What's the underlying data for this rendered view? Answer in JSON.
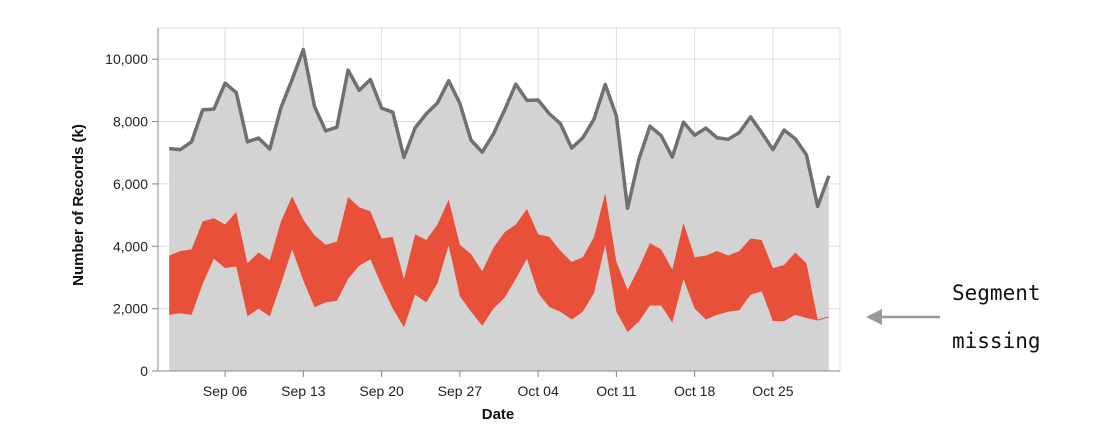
{
  "chart_data": {
    "type": "area",
    "xlabel": "Date",
    "ylabel": "Number of Records (k)",
    "x_axis": {
      "type": "date",
      "start": "2020-08-31",
      "end": "2020-10-31",
      "tick_labels": [
        "Sep 06",
        "Sep 13",
        "Sep 20",
        "Sep 27",
        "Oct 04",
        "Oct 11",
        "Oct 18",
        "Oct 25"
      ],
      "tick_dates": [
        "2020-09-06",
        "2020-09-13",
        "2020-09-20",
        "2020-09-27",
        "2020-10-04",
        "2020-10-11",
        "2020-10-18",
        "2020-10-25"
      ]
    },
    "y_axis": {
      "range": [
        0,
        11000
      ],
      "ticks": [
        0,
        2000,
        4000,
        6000,
        8000,
        10000
      ],
      "tick_labels": [
        "0",
        "2,000",
        "4,000",
        "6,000",
        "8,000",
        "10,000"
      ]
    },
    "grid": true,
    "colors": {
      "total_fill": "#d3d3d3",
      "total_line": "#707070",
      "band_fill": "#e8503a",
      "arrow": "#999999"
    },
    "x": [
      "2020-09-01",
      "2020-09-02",
      "2020-09-03",
      "2020-09-04",
      "2020-09-05",
      "2020-09-06",
      "2020-09-07",
      "2020-09-08",
      "2020-09-09",
      "2020-09-10",
      "2020-09-11",
      "2020-09-12",
      "2020-09-13",
      "2020-09-14",
      "2020-09-15",
      "2020-09-16",
      "2020-09-17",
      "2020-09-18",
      "2020-09-19",
      "2020-09-20",
      "2020-09-21",
      "2020-09-22",
      "2020-09-23",
      "2020-09-24",
      "2020-09-25",
      "2020-09-26",
      "2020-09-27",
      "2020-09-28",
      "2020-09-29",
      "2020-09-30",
      "2020-10-01",
      "2020-10-02",
      "2020-10-03",
      "2020-10-04",
      "2020-10-05",
      "2020-10-06",
      "2020-10-07",
      "2020-10-08",
      "2020-10-09",
      "2020-10-10",
      "2020-10-11",
      "2020-10-12",
      "2020-10-13",
      "2020-10-14",
      "2020-10-15",
      "2020-10-16",
      "2020-10-17",
      "2020-10-18",
      "2020-10-19",
      "2020-10-20",
      "2020-10-21",
      "2020-10-22",
      "2020-10-23",
      "2020-10-24",
      "2020-10-25",
      "2020-10-26",
      "2020-10-27",
      "2020-10-28",
      "2020-10-29",
      "2020-10-30"
    ],
    "series": [
      {
        "values": [
          7130,
          7100,
          7350,
          8380,
          8400,
          9230,
          8930,
          7350,
          7470,
          7120,
          8450,
          9350,
          10310,
          8480,
          7700,
          7820,
          9650,
          9000,
          9350,
          8430,
          8300,
          6850,
          7800,
          8250,
          8600,
          9310,
          8580,
          7400,
          7020,
          7600,
          8370,
          9200,
          8680,
          8690,
          8250,
          7930,
          7150,
          7480,
          8080,
          9190,
          8180,
          5220,
          6780,
          7850,
          7550,
          6860,
          7980,
          7560,
          7790,
          7480,
          7430,
          7650,
          8150,
          7640,
          7100,
          7730,
          7450,
          6930,
          5280,
          6260
        ]
      },
      {
        "upper": [
          3700,
          3850,
          3900,
          4800,
          4900,
          4700,
          5100,
          3450,
          3800,
          3550,
          4800,
          5600,
          4850,
          4350,
          4050,
          4150,
          5580,
          5250,
          5120,
          4250,
          4300,
          2950,
          4380,
          4200,
          4700,
          5500,
          4050,
          3750,
          3200,
          3950,
          4450,
          4700,
          5200,
          4380,
          4300,
          3850,
          3500,
          3650,
          4300,
          5700,
          3500,
          2600,
          3300,
          4100,
          3900,
          3250,
          4750,
          3650,
          3700,
          3850,
          3700,
          3850,
          4250,
          4200,
          3300,
          3400,
          3800,
          3450,
          1650,
          1750
        ],
        "lower": [
          1800,
          1850,
          1800,
          2800,
          3600,
          3300,
          3350,
          1750,
          2000,
          1750,
          2800,
          3900,
          2900,
          2050,
          2200,
          2250,
          2950,
          3380,
          3580,
          2750,
          2000,
          1400,
          2450,
          2200,
          2820,
          4030,
          2400,
          1900,
          1450,
          2000,
          2350,
          2950,
          3600,
          2500,
          2050,
          1900,
          1650,
          1900,
          2500,
          4050,
          1900,
          1250,
          1580,
          2100,
          2100,
          1550,
          2950,
          2000,
          1650,
          1800,
          1900,
          1950,
          2450,
          2550,
          1600,
          1600,
          1800,
          1700,
          1620,
          1720
        ]
      }
    ],
    "annotation": {
      "line1": "Segment",
      "line2": "missing"
    }
  }
}
